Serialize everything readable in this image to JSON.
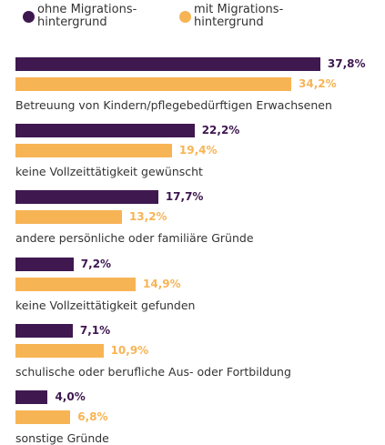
{
  "chart_data": {
    "type": "bar",
    "orientation": "horizontal",
    "categories": [
      "Betreuung von Kindern/pflegebedürftigen Erwachsenen",
      "keine Vollzeittätigkeit gewünscht",
      "andere persönliche oder familiäre Gründe",
      "keine Vollzeittätigkeit gefunden",
      "schulische oder berufliche Aus- oder Fortbildung",
      "sonstige Gründe"
    ],
    "series": [
      {
        "name": "ohne Migrations-\nhintergrund",
        "color": "#3f1850",
        "values": [
          37.8,
          22.2,
          17.7,
          7.2,
          7.1,
          4.0
        ],
        "value_labels": [
          "37,8%",
          "22,2%",
          "17,7%",
          "7,2%",
          "7,1%",
          "4,0%"
        ]
      },
      {
        "name": "mit Migrations-\nhintergrund",
        "color": "#f7b455",
        "values": [
          34.2,
          19.4,
          13.2,
          14.9,
          10.9,
          6.8
        ],
        "value_labels": [
          "34,2%",
          "19,4%",
          "13,2%",
          "14,9%",
          "10,9%",
          "6,8%"
        ]
      }
    ],
    "legend": "top-left"
  }
}
